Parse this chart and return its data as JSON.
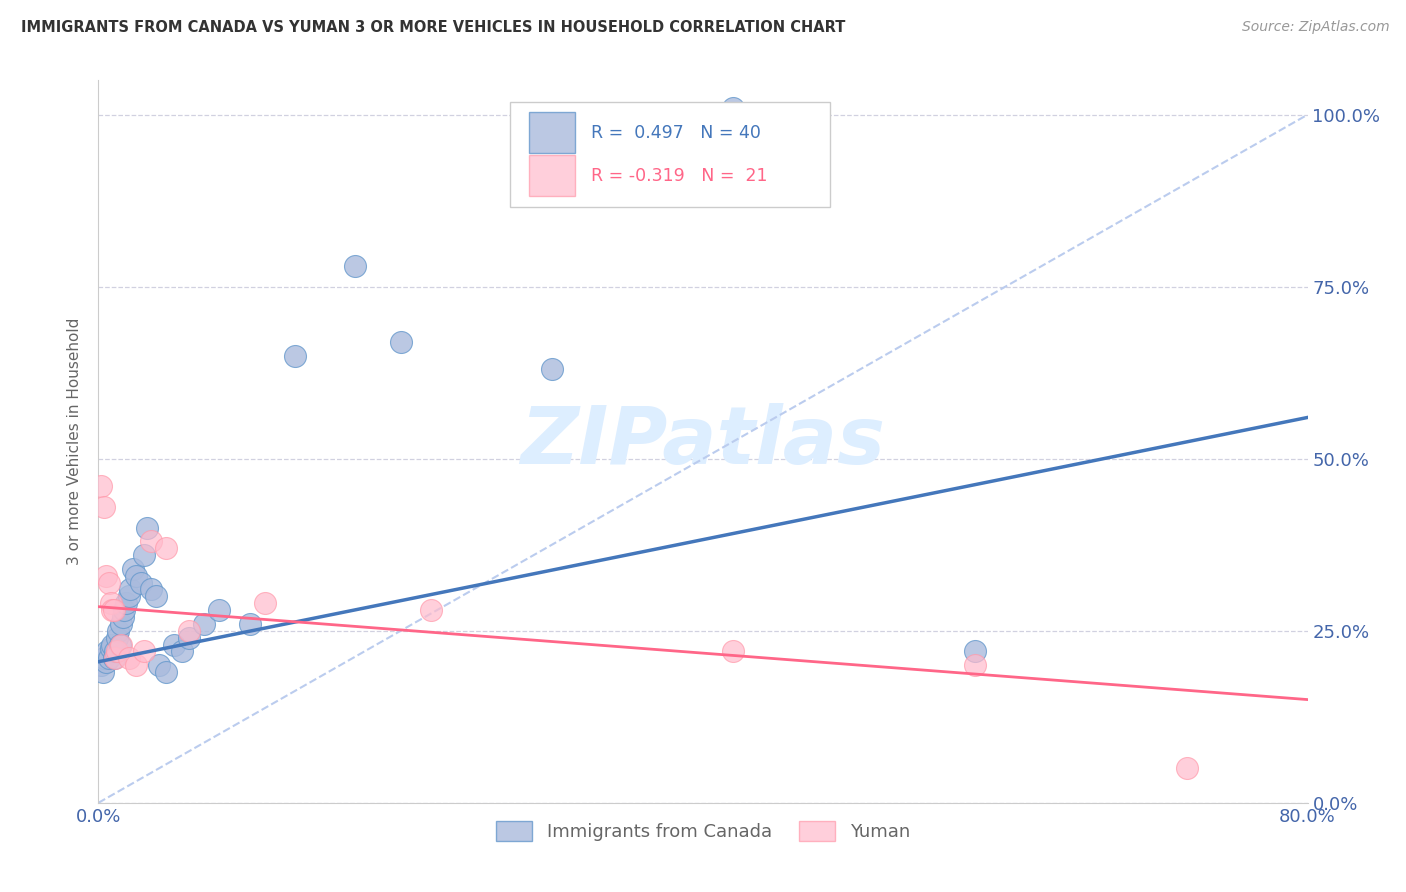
{
  "title": "IMMIGRANTS FROM CANADA VS YUMAN 3 OR MORE VEHICLES IN HOUSEHOLD CORRELATION CHART",
  "source": "Source: ZipAtlas.com",
  "ylabel": "3 or more Vehicles in Household",
  "legend_blue_label": "Immigrants from Canada",
  "legend_pink_label": "Yuman",
  "blue_fill": "#AABBDD",
  "blue_edge": "#6699CC",
  "blue_line": "#4477BB",
  "pink_fill": "#FFBBCC",
  "pink_edge": "#FF99AA",
  "pink_line": "#FF6688",
  "dash_line": "#BBCCEE",
  "grid_color": "#CCCCDD",
  "axis_label_color": "#4466AA",
  "title_color": "#333333",
  "source_color": "#999999",
  "watermark_color": "#DDEEFF",
  "ylabel_color": "#666666",
  "xmin": 0,
  "xmax": 80,
  "ymin": 0,
  "ymax": 105,
  "x_ticks": [
    0,
    16,
    32,
    48,
    64,
    80
  ],
  "x_tick_labels": [
    "0.0%",
    "",
    "",
    "",
    "",
    "80.0%"
  ],
  "y_ticks": [
    0,
    25,
    50,
    75,
    100
  ],
  "y_tick_labels_right": [
    "0.0%",
    "25.0%",
    "50.0%",
    "75.0%",
    "100.0%"
  ],
  "blue_x": [
    0.2,
    0.3,
    0.4,
    0.5,
    0.6,
    0.7,
    0.8,
    0.9,
    1.0,
    1.1,
    1.2,
    1.3,
    1.4,
    1.5,
    1.6,
    1.7,
    1.8,
    2.0,
    2.1,
    2.3,
    2.5,
    2.8,
    3.0,
    3.2,
    3.5,
    3.8,
    4.0,
    4.5,
    5.0,
    5.5,
    6.0,
    7.0,
    8.0,
    10.0,
    13.0,
    17.0,
    20.0,
    30.0,
    42.0,
    58.0
  ],
  "blue_y": [
    20.0,
    19.0,
    21.0,
    20.5,
    22.0,
    21.0,
    22.5,
    23.0,
    21.0,
    22.0,
    24.0,
    25.0,
    23.0,
    26.0,
    27.0,
    28.0,
    29.0,
    30.0,
    31.0,
    34.0,
    33.0,
    32.0,
    36.0,
    40.0,
    31.0,
    30.0,
    20.0,
    19.0,
    23.0,
    22.0,
    24.0,
    26.0,
    28.0,
    26.0,
    65.0,
    78.0,
    67.0,
    63.0,
    101.0,
    22.0
  ],
  "pink_x": [
    0.2,
    0.4,
    0.5,
    0.7,
    0.8,
    0.9,
    1.0,
    1.1,
    1.2,
    1.5,
    2.0,
    2.5,
    3.0,
    3.5,
    4.5,
    6.0,
    11.0,
    22.0,
    42.0,
    58.0,
    72.0
  ],
  "pink_y": [
    46.0,
    43.0,
    33.0,
    32.0,
    29.0,
    28.0,
    28.0,
    21.0,
    22.0,
    23.0,
    21.0,
    20.0,
    22.0,
    38.0,
    37.0,
    25.0,
    29.0,
    28.0,
    22.0,
    20.0,
    5.0
  ],
  "blue_line_x0": 0,
  "blue_line_y0": 20.5,
  "blue_line_x1": 80,
  "blue_line_y1": 56.0,
  "pink_line_x0": 0,
  "pink_line_y0": 28.5,
  "pink_line_x1": 80,
  "pink_line_y1": 15.0
}
